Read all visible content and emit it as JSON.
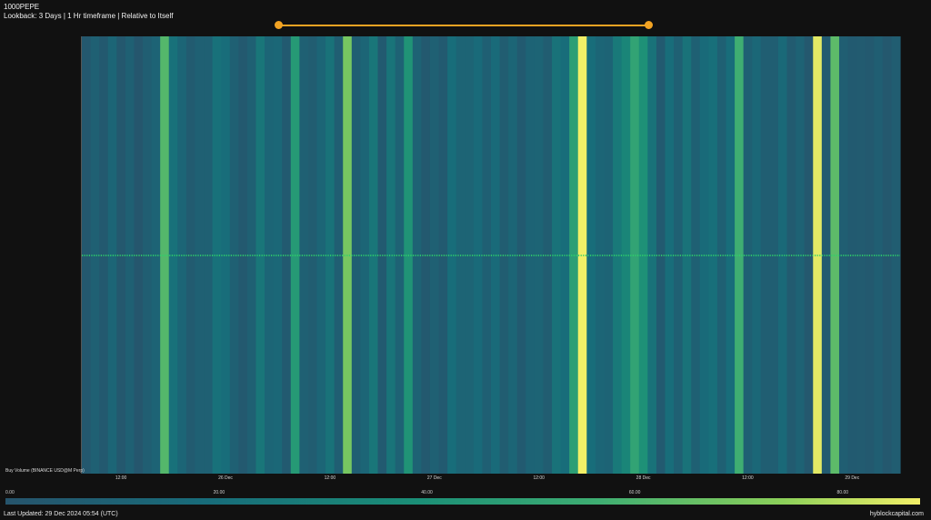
{
  "header": {
    "title": "1000PEPE",
    "subtitle": "Lookback: 3 Days | 1 Hr timeframe | Relative to Itself"
  },
  "footer": {
    "last_updated": "Last Updated: 29 Dec 2024 05:54 (UTC)",
    "brand": "hyblockcapital.com"
  },
  "colorbar": {
    "ticks": [
      "0.00",
      "20.00",
      "40.00",
      "60.00",
      "80.00"
    ],
    "min": 0,
    "max": 88
  },
  "colors": {
    "background": "#111111",
    "slider": "#f2a323",
    "center_line": "#2fd36a"
  },
  "chart_data": {
    "type": "heatmap",
    "title": "1000PEPE",
    "row_label": "Buy Volume (BINANCE USD@M Perp)",
    "x_tick_labels": [
      "12:00",
      "26 Dec",
      "12:00",
      "27 Dec",
      "12:00",
      "28 Dec",
      "12:00",
      "29 Dec"
    ],
    "x_tick_hours": [
      12,
      24,
      36,
      48,
      60,
      72,
      84,
      96
    ],
    "x_start_hour": 7.5,
    "x_end_hour": 101.5,
    "color_scale": "viridis",
    "value_range": [
      0,
      88
    ],
    "values": [
      3,
      10,
      4,
      14,
      3,
      10,
      2,
      8,
      12,
      62,
      22,
      14,
      6,
      10,
      10,
      22,
      20,
      10,
      4,
      10,
      25,
      14,
      15,
      5,
      45,
      10,
      7,
      14,
      23,
      8,
      70,
      8,
      14,
      25,
      5,
      24,
      11,
      42,
      11,
      4,
      10,
      5,
      20,
      13,
      13,
      18,
      9,
      18,
      7,
      14,
      5,
      12,
      13,
      7,
      23,
      20,
      48,
      88,
      20,
      14,
      12,
      27,
      34,
      51,
      41,
      23,
      5,
      20,
      10,
      23,
      10,
      18,
      21,
      10,
      20,
      57,
      10,
      15,
      8,
      8,
      17,
      6,
      11,
      3,
      86,
      6,
      64,
      8,
      5,
      6,
      4,
      8,
      3,
      7
    ]
  }
}
